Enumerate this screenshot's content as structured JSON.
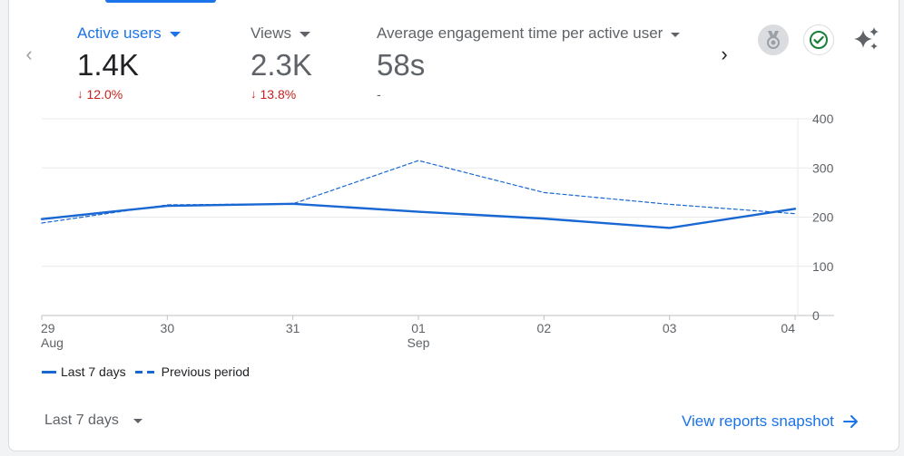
{
  "metrics": [
    {
      "label": "Active users",
      "value": "1.4K",
      "change": "12.0%",
      "change_arrow": "↓"
    },
    {
      "label": "Views",
      "value": "2.3K",
      "change": "13.8%",
      "change_arrow": "↓"
    },
    {
      "label": "Average engagement time per active user",
      "value": "58s",
      "change": "-"
    }
  ],
  "nav": {
    "prev": "‹",
    "next": "›"
  },
  "chart_data": {
    "type": "line",
    "categories": [
      "29\nAug",
      "30",
      "31",
      "01\nSep",
      "02",
      "03",
      "04"
    ],
    "x_tick_labels": [
      [
        "29",
        "Aug"
      ],
      [
        "30"
      ],
      [
        "31"
      ],
      [
        "01",
        "Sep"
      ],
      [
        "02"
      ],
      [
        "03"
      ],
      [
        "04"
      ]
    ],
    "series": [
      {
        "name": "Last 7 days",
        "style": "solid",
        "values": [
          196,
          223,
          227,
          211,
          197,
          178,
          217
        ]
      },
      {
        "name": "Previous period",
        "style": "dashed",
        "values": [
          188,
          225,
          227,
          315,
          250,
          226,
          207
        ]
      }
    ],
    "ylim": [
      0,
      400
    ],
    "yticks": [
      0,
      100,
      200,
      300,
      400
    ],
    "grid": true,
    "legend_position": "bottom-left"
  },
  "legend": {
    "current": "Last 7 days",
    "previous": "Previous period"
  },
  "footer": {
    "range_label": "Last 7 days",
    "snapshot_link": "View reports snapshot"
  },
  "colors": {
    "accent": "#1a73e8",
    "series": "#1967d2",
    "negative": "#c5221f",
    "success": "#188038"
  }
}
